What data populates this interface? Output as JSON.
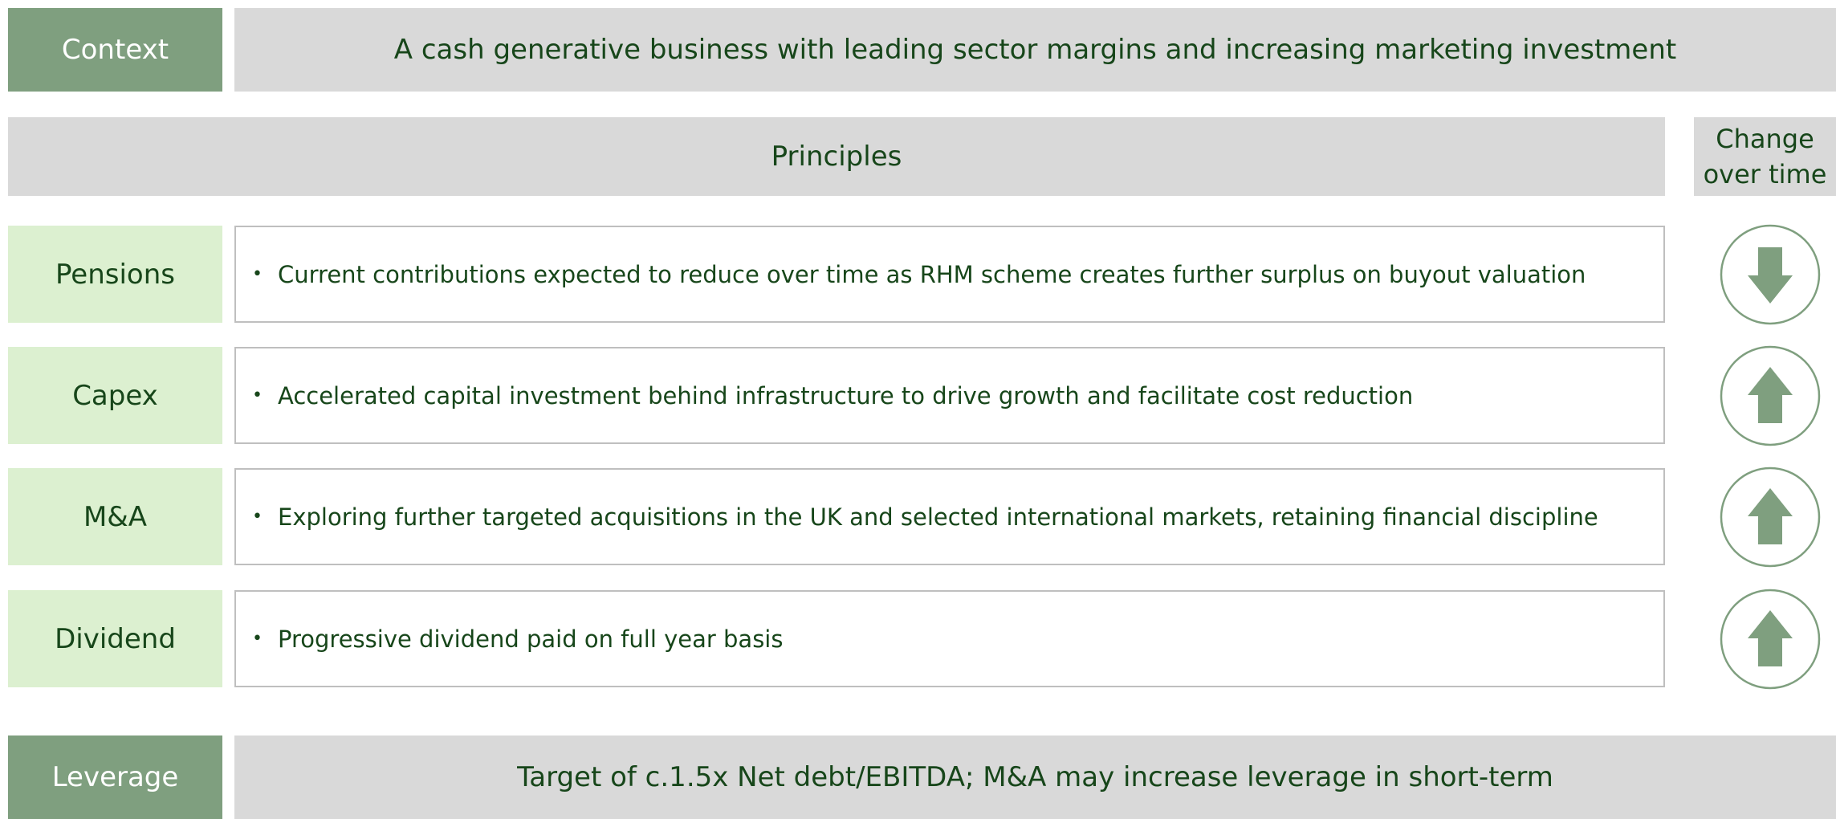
{
  "header": {
    "label": "Context",
    "text": "A cash generative business with leading sector margins and increasing marketing investment"
  },
  "principles": "Principles",
  "change_header": "Change over time",
  "rows": [
    {
      "label": "Pensions",
      "text": "Current contributions expected to reduce over time as RHM scheme creates further surplus on buyout valuation",
      "change": "down"
    },
    {
      "label": "Capex",
      "text": "Accelerated capital investment behind infrastructure to drive growth and facilitate cost reduction",
      "change": "up"
    },
    {
      "label": "M&A",
      "text": "Exploring further targeted acquisitions in the UK and selected international markets, retaining financial discipline",
      "change": "up"
    },
    {
      "label": "Dividend",
      "text": "Progressive dividend paid on full year basis",
      "change": "up"
    }
  ],
  "footer": {
    "label": "Leverage",
    "text": "Target of c.1.5x Net debt/EBITDA; M&A may increase leverage in short-term"
  }
}
